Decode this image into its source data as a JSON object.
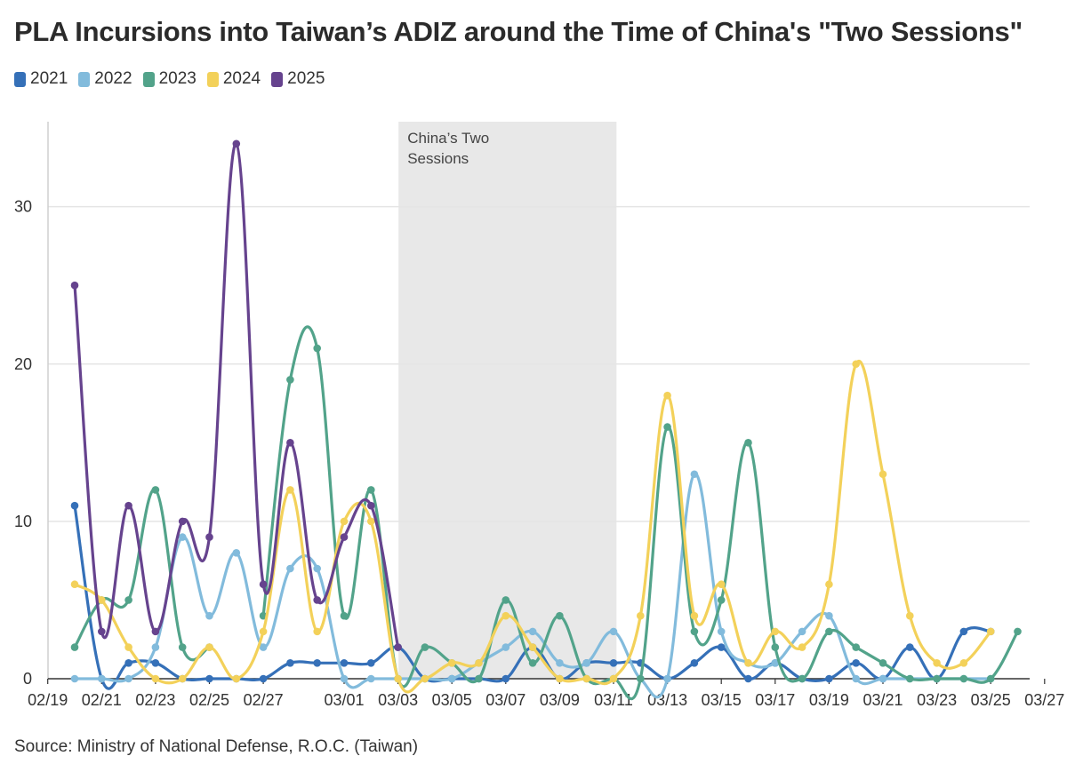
{
  "title": "PLA Incursions into Taiwan’s ADIZ around the Time of China's \"Two Sessions\"",
  "source": "Source: Ministry of National Defense, R.O.C. (Taiwan)",
  "chart_data": {
    "type": "line",
    "title": "PLA Incursions into Taiwan’s ADIZ around the Time of China's \"Two Sessions\"",
    "xlabel": "",
    "ylabel": "",
    "ylim": [
      0,
      35.4
    ],
    "yticks": [
      0,
      10,
      20,
      30
    ],
    "grid": true,
    "legend_position": "top-left",
    "x": [
      "02/20",
      "02/21",
      "02/22",
      "02/23",
      "02/24",
      "02/25",
      "02/26",
      "02/27",
      "02/28",
      "02/29",
      "03/01",
      "03/02",
      "03/03",
      "03/04",
      "03/05",
      "03/06",
      "03/07",
      "03/08",
      "03/09",
      "03/10",
      "03/11",
      "03/12",
      "03/13",
      "03/14",
      "03/15",
      "03/16",
      "03/17",
      "03/18",
      "03/19",
      "03/20",
      "03/21",
      "03/22",
      "03/23",
      "03/24",
      "03/25",
      "03/26",
      "03/27"
    ],
    "xticks": [
      "02/19",
      "02/21",
      "02/23",
      "02/25",
      "02/27",
      "03/01",
      "03/03",
      "03/05",
      "03/07",
      "03/09",
      "03/11",
      "03/13",
      "03/15",
      "03/17",
      "03/19",
      "03/21",
      "03/23",
      "03/25",
      "03/27"
    ],
    "shaded_region": {
      "label": "China’s Two Sessions",
      "from": "03/04",
      "to": "03/11"
    },
    "series": [
      {
        "name": "2021",
        "color": "#3570b8",
        "values": [
          11,
          0,
          1,
          1,
          0,
          0,
          0,
          0,
          1,
          1,
          1,
          1,
          2,
          0,
          0,
          0,
          0,
          2,
          0,
          1,
          1,
          1,
          0,
          1,
          2,
          0,
          1,
          0,
          0,
          1,
          0,
          2,
          0,
          3,
          3,
          null,
          null
        ]
      },
      {
        "name": "2022",
        "color": "#82bbdc",
        "values": [
          0,
          0,
          0,
          2,
          9,
          4,
          8,
          2,
          7,
          7,
          0,
          0,
          0,
          0,
          0,
          1,
          2,
          3,
          1,
          1,
          3,
          0,
          0,
          13,
          3,
          1,
          1,
          3,
          4,
          0,
          0,
          0,
          0,
          0,
          0,
          null,
          null
        ]
      },
      {
        "name": "2023",
        "color": "#52a38a",
        "values": [
          2,
          5,
          5,
          12,
          2,
          2,
          null,
          4,
          19,
          21,
          4,
          12,
          0,
          2,
          1,
          0,
          5,
          1,
          4,
          0,
          0,
          0,
          16,
          3,
          5,
          15,
          2,
          0,
          3,
          2,
          1,
          0,
          0,
          0,
          0,
          3,
          null
        ]
      },
      {
        "name": "2024",
        "color": "#f3d15a",
        "values": [
          6,
          5,
          2,
          0,
          0,
          2,
          0,
          3,
          12,
          3,
          10,
          10,
          0,
          0,
          1,
          1,
          4,
          2,
          0,
          0,
          0,
          4,
          18,
          4,
          6,
          1,
          3,
          2,
          6,
          20,
          13,
          4,
          1,
          1,
          3,
          null,
          null
        ]
      },
      {
        "name": "2025",
        "color": "#66438e",
        "values": [
          25,
          3,
          11,
          3,
          10,
          9,
          34,
          6,
          15,
          5,
          9,
          11,
          2,
          null,
          null,
          null,
          null,
          null,
          null,
          null,
          null,
          null,
          null,
          null,
          null,
          null,
          null,
          null,
          null,
          null,
          null,
          null,
          null,
          null,
          null,
          null,
          null
        ]
      }
    ]
  }
}
